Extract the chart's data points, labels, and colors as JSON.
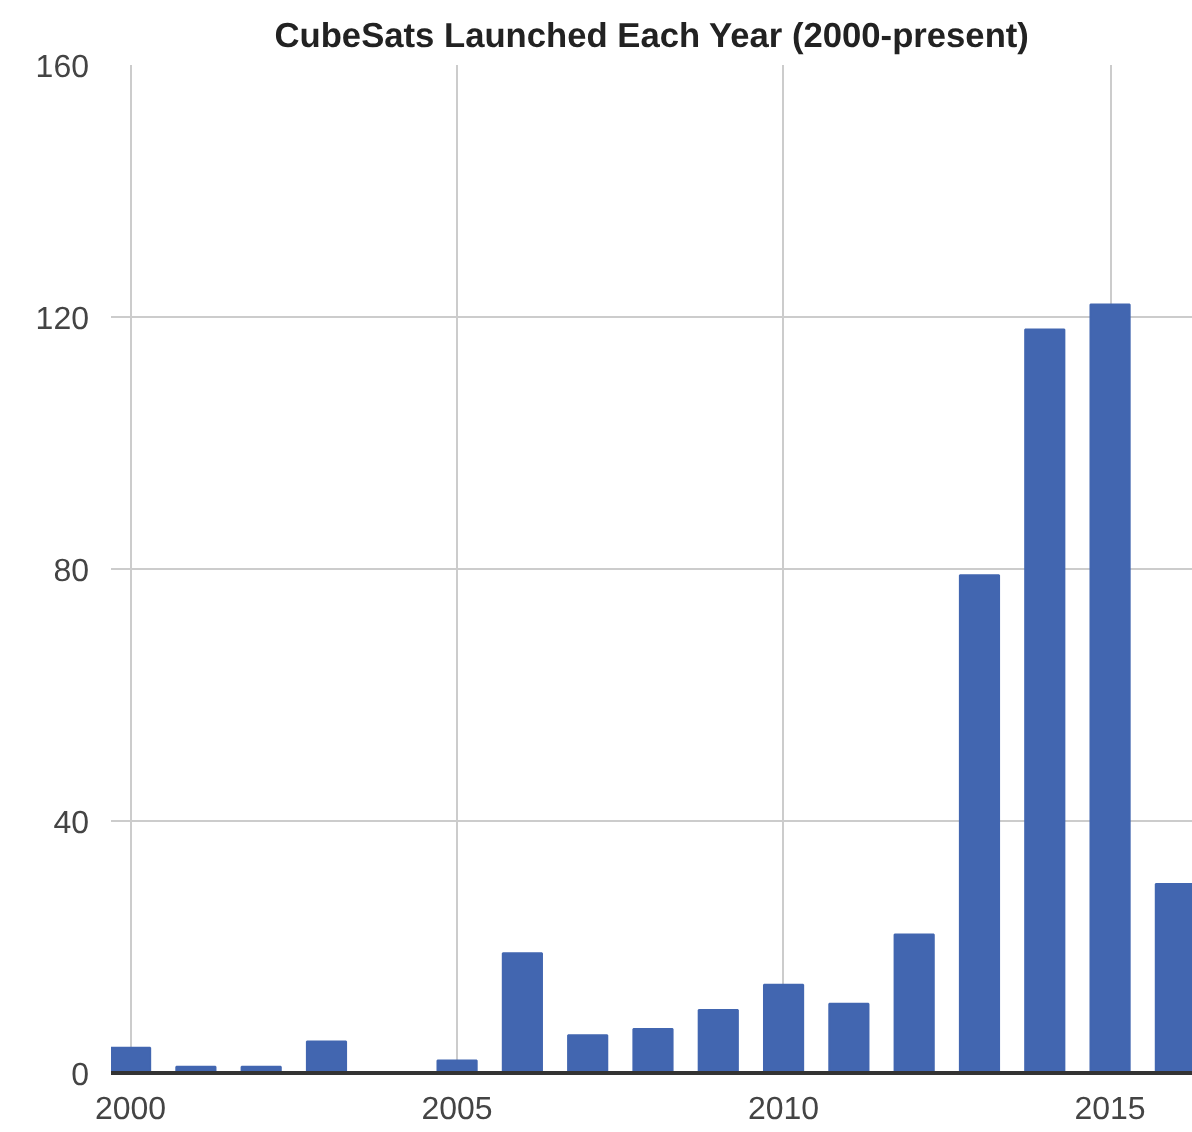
{
  "chart_data": {
    "type": "bar",
    "title": "CubeSats Launched Each Year (2000-present)",
    "x": [
      2000,
      2001,
      2002,
      2003,
      2004,
      2005,
      2006,
      2007,
      2008,
      2009,
      2010,
      2011,
      2012,
      2013,
      2014,
      2015,
      2016
    ],
    "values": [
      4,
      1,
      1,
      5,
      0,
      2,
      19,
      6,
      7,
      10,
      14,
      11,
      22,
      79,
      118,
      122,
      30
    ],
    "color": "#4266b0",
    "xlim": [
      1999.7,
      2016.27
    ],
    "xticks": [
      2000,
      2005,
      2010,
      2015
    ],
    "ylim": [
      0,
      160
    ],
    "yticks": [
      0,
      40,
      80,
      120,
      160
    ],
    "grid": true
  }
}
